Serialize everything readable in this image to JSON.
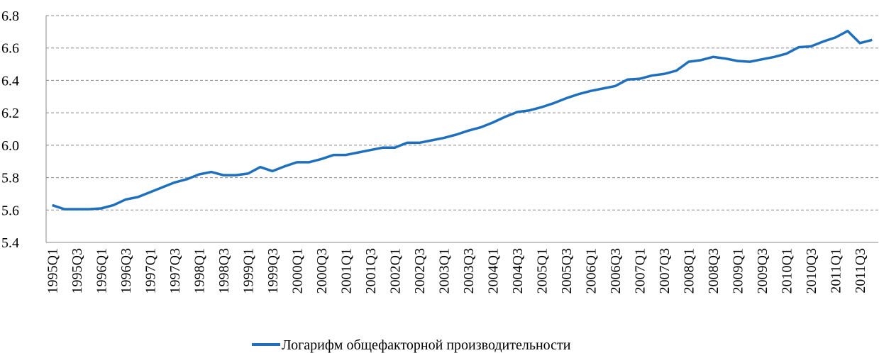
{
  "chart_data": {
    "type": "line",
    "categories": [
      "1995Q1",
      null,
      "1995Q3",
      null,
      "1996Q1",
      null,
      "1996Q3",
      null,
      "1997Q1",
      null,
      "1997Q3",
      null,
      "1998Q1",
      null,
      "1998Q3",
      null,
      "1999Q1",
      null,
      "1999Q3",
      null,
      "2000Q1",
      null,
      "2000Q3",
      null,
      "2001Q1",
      null,
      "2001Q3",
      null,
      "2002Q1",
      null,
      "2002Q3",
      null,
      "2003Q1",
      null,
      "2003Q3",
      null,
      "2004Q1",
      null,
      "2004Q3",
      null,
      "2005Q1",
      null,
      "2005Q3",
      null,
      "2006Q1",
      null,
      "2006Q3",
      null,
      "2007Q1",
      null,
      "2007Q3",
      null,
      "2008Q1",
      null,
      "2008Q3",
      null,
      "2009Q1",
      null,
      "2009Q3",
      null,
      "2010Q1",
      null,
      "2010Q3",
      null,
      "2011Q1",
      null,
      "2011Q3",
      null
    ],
    "series": [
      {
        "name": "Логарифм общефакторной производительности",
        "color": "#1f6fbf",
        "values": [
          5.63,
          5.605,
          5.605,
          5.605,
          5.61,
          5.63,
          5.665,
          5.68,
          5.71,
          5.74,
          5.77,
          5.79,
          5.82,
          5.835,
          5.815,
          5.815,
          5.825,
          5.865,
          5.84,
          5.87,
          5.895,
          5.895,
          5.915,
          5.94,
          5.94,
          5.955,
          5.97,
          5.985,
          5.985,
          6.015,
          6.015,
          6.03,
          6.045,
          6.065,
          6.09,
          6.11,
          6.14,
          6.175,
          6.205,
          6.215,
          6.235,
          6.26,
          6.29,
          6.315,
          6.335,
          6.35,
          6.365,
          6.405,
          6.41,
          6.43,
          6.44,
          6.46,
          6.515,
          6.525,
          6.545,
          6.535,
          6.52,
          6.515,
          6.53,
          6.545,
          6.565,
          6.605,
          6.61,
          6.64,
          6.665,
          6.705,
          6.63,
          6.65
        ]
      }
    ],
    "ylim": [
      5.4,
      6.8
    ],
    "yticks": [
      5.4,
      5.6,
      5.8,
      {
        "value": 6,
        "label": "6.0"
      },
      6.2,
      6.4,
      6.6,
      6.8
    ],
    "grid": true,
    "legend": "bottom"
  }
}
